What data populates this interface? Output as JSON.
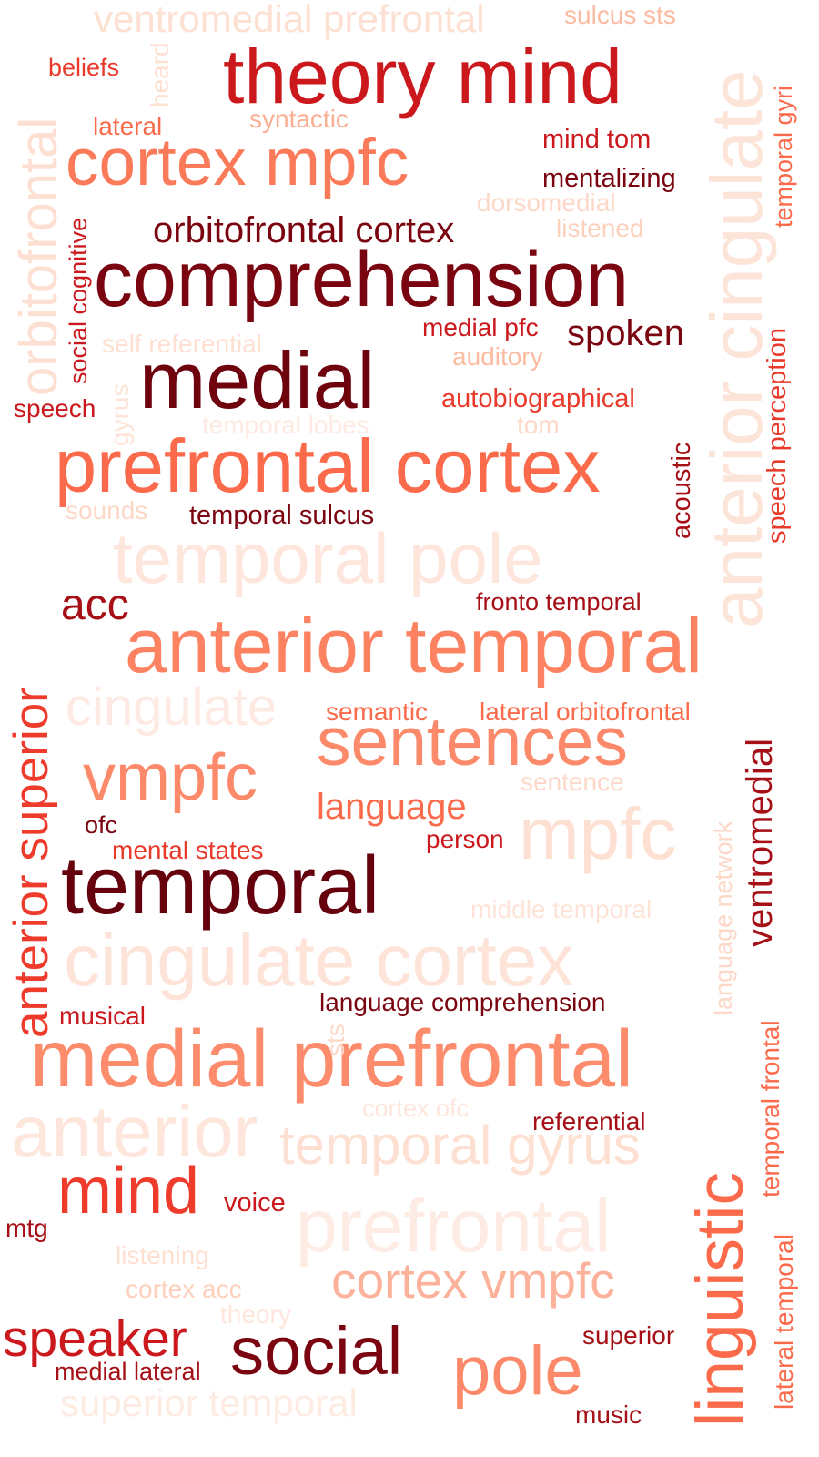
{
  "palette": {
    "darkest": "#67000d",
    "dark": "#a50f15",
    "red": "#cb181d",
    "mid": "#ef3b2c",
    "salmon": "#fb6a4a",
    "light_salmon": "#fc9272",
    "pale": "#fcbba1",
    "palest": "#fee0d2"
  },
  "words": {
    "theory_mind": "theory mind",
    "comprehension": "comprehension",
    "medial": "medial",
    "temporal": "temporal",
    "prefrontal_cortex": "prefrontal cortex",
    "anterior_temporal": "anterior temporal",
    "medial_prefrontal": "medial prefrontal",
    "cortex_mpfc": "cortex mpfc",
    "temporal_pole": "temporal pole",
    "cingulate_cortex": "cingulate cortex",
    "prefrontal": "prefrontal",
    "anterior": "anterior",
    "anterior_cingulate": "anterior cingulate",
    "linguistic": "linguistic",
    "anterior_superior": "anterior superior",
    "sentences": "sentences",
    "mpfc": "mpfc",
    "vmpfc": "vmpfc",
    "mind": "mind",
    "social": "social",
    "pole": "pole",
    "cingulate": "cingulate",
    "temporal_gyrus": "temporal gyrus",
    "cortex_vmpfc": "cortex vmpfc",
    "speaker": "speaker",
    "orbitofrontal": "orbitofrontal",
    "ventromedial_prefrontal": "ventromedial prefrontal",
    "superior_temporal": "superior temporal",
    "orbitofrontal_cortex": "orbitofrontal cortex",
    "spoken": "spoken",
    "acc": "acc",
    "language": "language",
    "ventromedial": "ventromedial",
    "mind_tom": "mind tom",
    "mentalizing": "mentalizing",
    "medial_pfc": "medial pfc",
    "autobiographical": "autobiographical",
    "temporal_sulcus": "temporal sulcus",
    "fronto_temporal": "fronto temporal",
    "semantic": "semantic",
    "lateral_orbitofrontal": "lateral orbitofrontal",
    "mental_states": "mental states",
    "person": "person",
    "language_comprehension": "language comprehension",
    "referential": "referential",
    "voice": "voice",
    "superior": "superior",
    "music": "music",
    "medial_lateral": "medial lateral",
    "speech": "speech",
    "beliefs": "beliefs",
    "lateral": "lateral",
    "syntactic": "syntactic",
    "sulcus_sts": "sulcus sts",
    "dorsomedial": "dorsomedial",
    "listened": "listened",
    "self_referential": "self referential",
    "auditory": "auditory",
    "tom": "tom",
    "temporal_lobes": "temporal lobes",
    "sounds": "sounds",
    "sentence": "sentence",
    "middle_temporal": "middle temporal",
    "musical": "musical",
    "cortex_ofc": "cortex ofc",
    "listening": "listening",
    "cortex_acc": "cortex acc",
    "theory": "theory",
    "ofc": "ofc",
    "mtg": "mtg",
    "heard": "heard",
    "social_cognitive": "social cognitive",
    "gyrus": "gyrus",
    "acoustic": "acoustic",
    "speech_perception": "speech perception",
    "temporal_gyri": "temporal gyri",
    "language_network": "language network",
    "sts": "sts",
    "temporal_frontal": "temporal frontal",
    "lateral_temporal": "lateral temporal"
  }
}
